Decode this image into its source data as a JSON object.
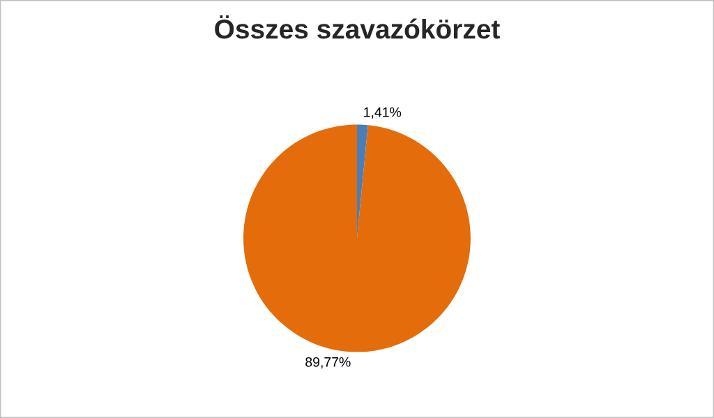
{
  "chart_data": {
    "type": "pie",
    "title": "Összes szavazókörzet",
    "categories": [
      null,
      null
    ],
    "values": [
      1.41,
      89.77
    ],
    "value_labels": [
      "1,41%",
      "89,77%"
    ],
    "colors": [
      "#4a7ebb",
      "#e46c0a"
    ]
  }
}
